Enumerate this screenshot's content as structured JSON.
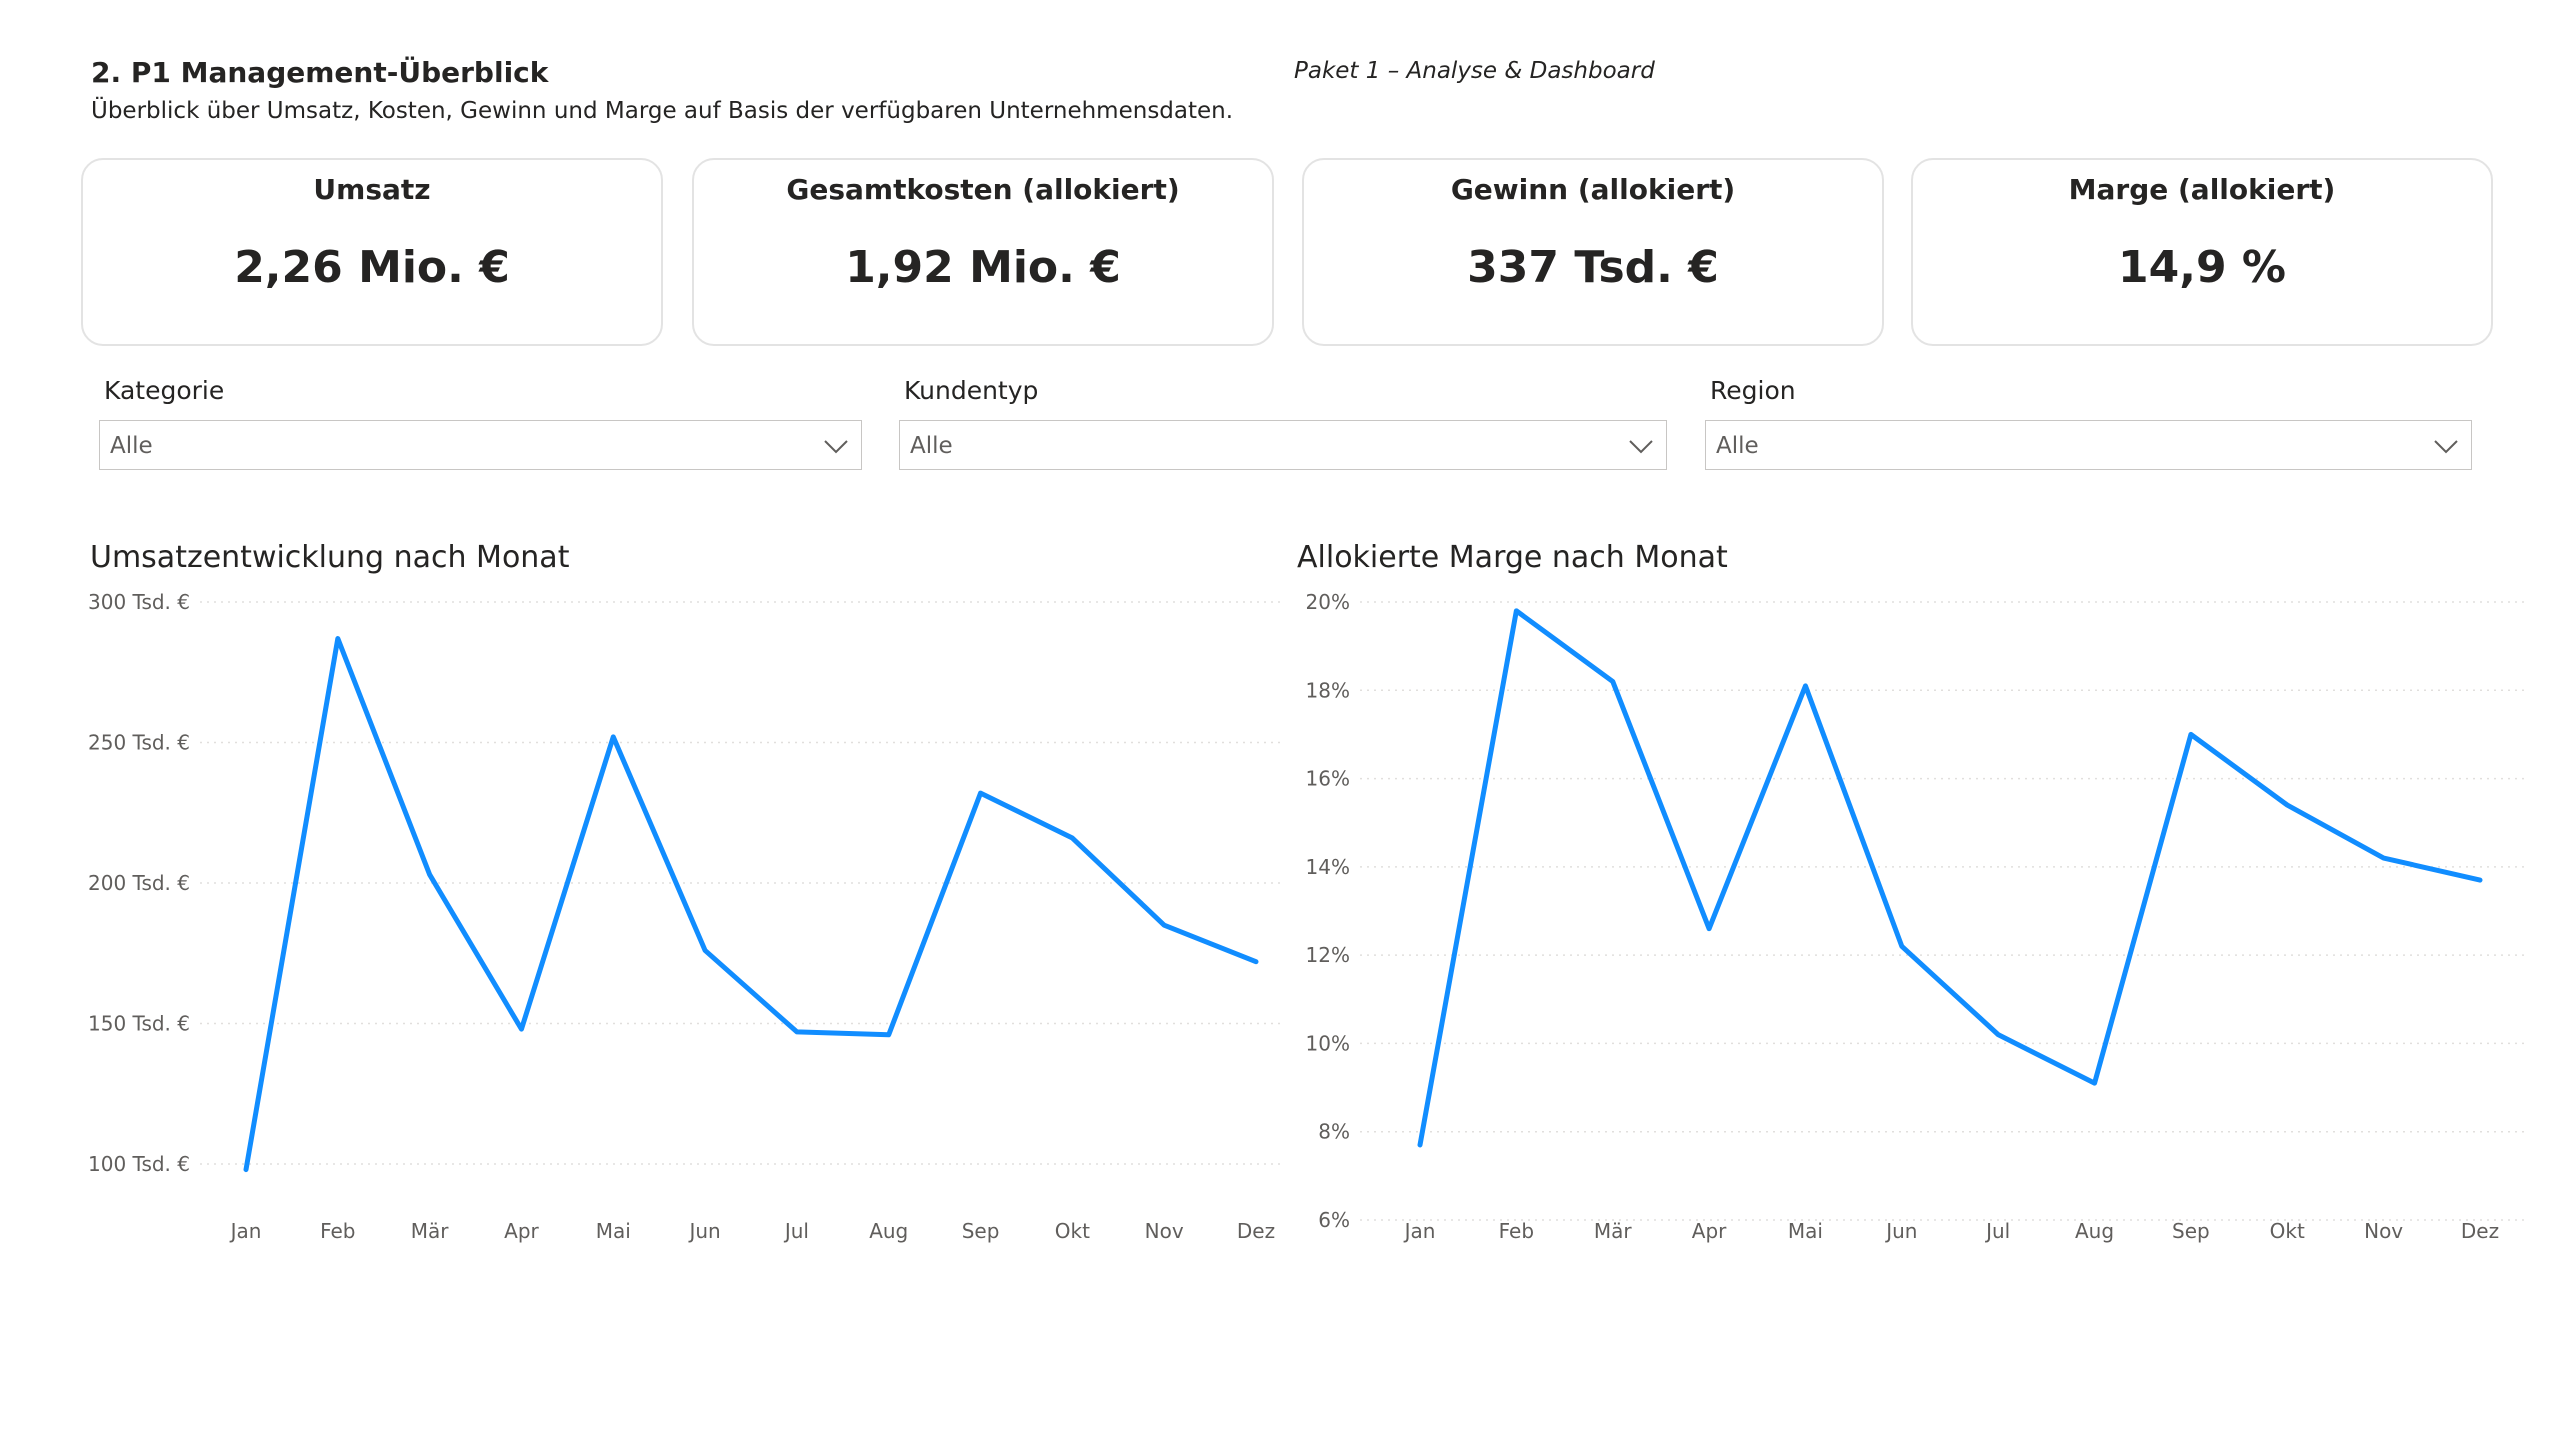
{
  "header": {
    "title": "2. P1 Management-Überblick",
    "subtitle": "Überblick über Umsatz, Kosten, Gewinn und Marge auf Basis der verfügbaren Unternehmensdaten.",
    "tag": "Paket 1 – Analyse & Dashboard"
  },
  "kpis": [
    {
      "title": "Umsatz",
      "value": "2,26 Mio. €"
    },
    {
      "title": "Gesamtkosten (allokiert)",
      "value": "1,92 Mio. €"
    },
    {
      "title": "Gewinn (allokiert)",
      "value": "337 Tsd. €"
    },
    {
      "title": "Marge (allokiert)",
      "value": "14,9 %"
    }
  ],
  "filters": [
    {
      "label": "Kategorie",
      "value": "Alle",
      "icon": "chevron-down-icon"
    },
    {
      "label": "Kundentyp",
      "value": "Alle",
      "icon": "chevron-down-icon"
    },
    {
      "label": "Region",
      "value": "Alle",
      "icon": "chevron-down-icon"
    }
  ],
  "colors": {
    "line": "#118DFF",
    "grid": "#e1dfdd",
    "card_border": "#e3e3e3"
  },
  "chart_data": [
    {
      "type": "line",
      "title": "Umsatzentwicklung nach Monat",
      "categories": [
        "Jan",
        "Feb",
        "Mär",
        "Apr",
        "Mai",
        "Jun",
        "Jul",
        "Aug",
        "Sep",
        "Okt",
        "Nov",
        "Dez"
      ],
      "values": [
        98,
        287,
        203,
        148,
        252,
        176,
        147,
        146,
        232,
        216,
        185,
        172
      ],
      "value_unit": "Tsd. €",
      "yticks": [
        100,
        150,
        200,
        250,
        300
      ],
      "ytick_labels": [
        "100 Tsd. €",
        "150 Tsd. €",
        "200 Tsd. €",
        "250 Tsd. €",
        "300 Tsd. €"
      ],
      "ylim": [
        100,
        300
      ],
      "grid": true,
      "legend": "none"
    },
    {
      "type": "line",
      "title": "Allokierte Marge nach Monat",
      "categories": [
        "Jan",
        "Feb",
        "Mär",
        "Apr",
        "Mai",
        "Jun",
        "Jul",
        "Aug",
        "Sep",
        "Okt",
        "Nov",
        "Dez"
      ],
      "values": [
        7.7,
        19.8,
        18.2,
        12.6,
        18.1,
        12.2,
        10.2,
        9.1,
        17.0,
        15.4,
        14.2,
        13.7
      ],
      "value_unit": "%",
      "yticks": [
        6,
        8,
        10,
        12,
        14,
        16,
        18,
        20
      ],
      "ytick_labels": [
        "6%",
        "8%",
        "10%",
        "12%",
        "14%",
        "16%",
        "18%",
        "20%"
      ],
      "ylim": [
        6,
        20
      ],
      "grid": true,
      "legend": "none"
    }
  ]
}
